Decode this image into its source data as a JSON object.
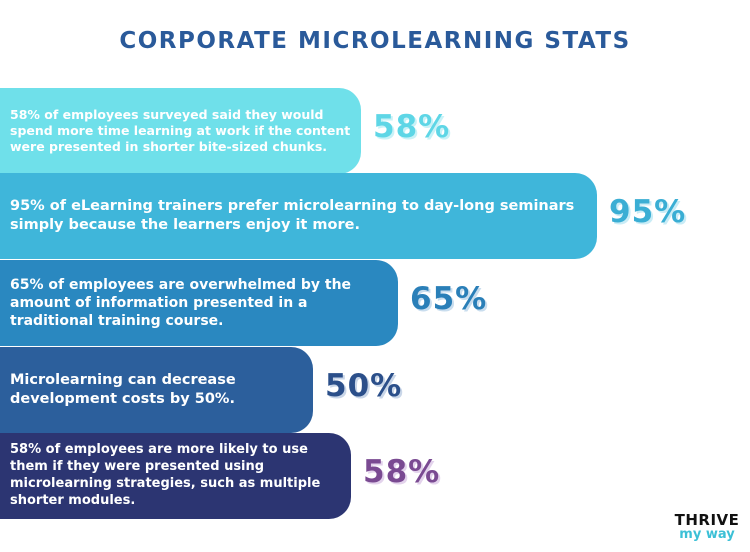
{
  "title": "CORPORATE MICROLEARNING STATS",
  "logo": {
    "line1": "THRIVE",
    "line2": "my way"
  },
  "colors": {
    "title": "#2a5a9a",
    "pct_1": "#5ed6e6",
    "pct_2": "#3aaed4",
    "pct_3": "#2a7fb8",
    "pct_4": "#2b4f8a",
    "pct_5": "#7a4a92",
    "logo_accent": "#3cc0d6"
  },
  "chart_data": {
    "type": "bar",
    "title": "CORPORATE MICROLEARNING STATS",
    "categories": [
      "58% of employees surveyed said they would spend more time learning at work if the content were presented in shorter bite-sized chunks.",
      "95% of eLearning trainers prefer microlearning to day-long seminars simply because the learners enjoy it more.",
      "65% of employees are overwhelmed by the amount of information presented in a traditional training course.",
      "Microlearning can decrease development costs by 50%.",
      "58% of employees are more likely to use them if they were presented using microlearning strategies, such as multiple shorter modules."
    ],
    "values": [
      58,
      95,
      65,
      50,
      58
    ],
    "value_labels": [
      "58%",
      "95%",
      "65%",
      "50%",
      "58%"
    ],
    "bar_colors": [
      "#6fe0ea",
      "#3fb6da",
      "#2a88c0",
      "#2c5f9c",
      "#2c3572"
    ],
    "orientation": "horizontal"
  }
}
